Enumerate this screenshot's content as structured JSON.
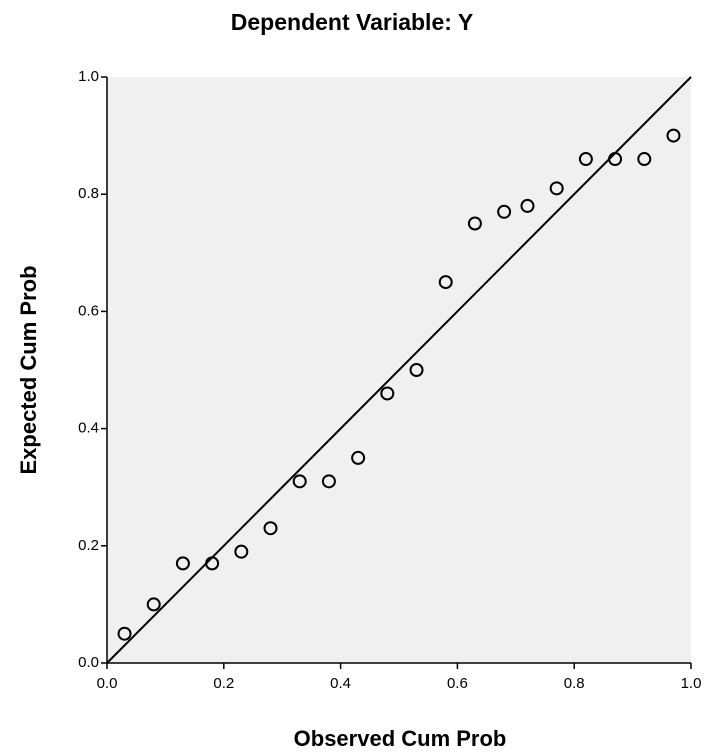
{
  "chart_data": {
    "type": "scatter",
    "title": "Dependent Variable: Y",
    "x_label": "Observed Cum Prob",
    "y_label": "Expected Cum Prob",
    "x": [
      0.03,
      0.08,
      0.13,
      0.18,
      0.23,
      0.28,
      0.33,
      0.38,
      0.43,
      0.48,
      0.53,
      0.58,
      0.63,
      0.68,
      0.72,
      0.77,
      0.82,
      0.87,
      0.92,
      0.97
    ],
    "values": [
      0.05,
      0.1,
      0.17,
      0.17,
      0.19,
      0.23,
      0.31,
      0.31,
      0.35,
      0.46,
      0.5,
      0.65,
      0.75,
      0.77,
      0.78,
      0.81,
      0.86,
      0.86,
      0.86,
      0.9
    ],
    "color": "#000000",
    "xlim": [
      0,
      1
    ],
    "ylim": [
      0,
      1
    ],
    "xticks": [
      {
        "value": 0,
        "label": "0.0"
      },
      {
        "value": 0.2,
        "label": "0.2"
      },
      {
        "value": 0.4,
        "label": "0.4"
      },
      {
        "value": 0.6,
        "label": "0.6"
      },
      {
        "value": 0.8,
        "label": "0.8"
      },
      {
        "value": 1,
        "label": "1.0"
      }
    ],
    "yticks": [
      {
        "value": 0,
        "label": "0.0"
      },
      {
        "value": 0.2,
        "label": "0.2"
      },
      {
        "value": 0.4,
        "label": "0.4"
      },
      {
        "value": 0.6,
        "label": "0.6"
      },
      {
        "value": 0.8,
        "label": "0.8"
      },
      {
        "value": 1,
        "label": "1.0"
      }
    ],
    "reference_line": true
  }
}
